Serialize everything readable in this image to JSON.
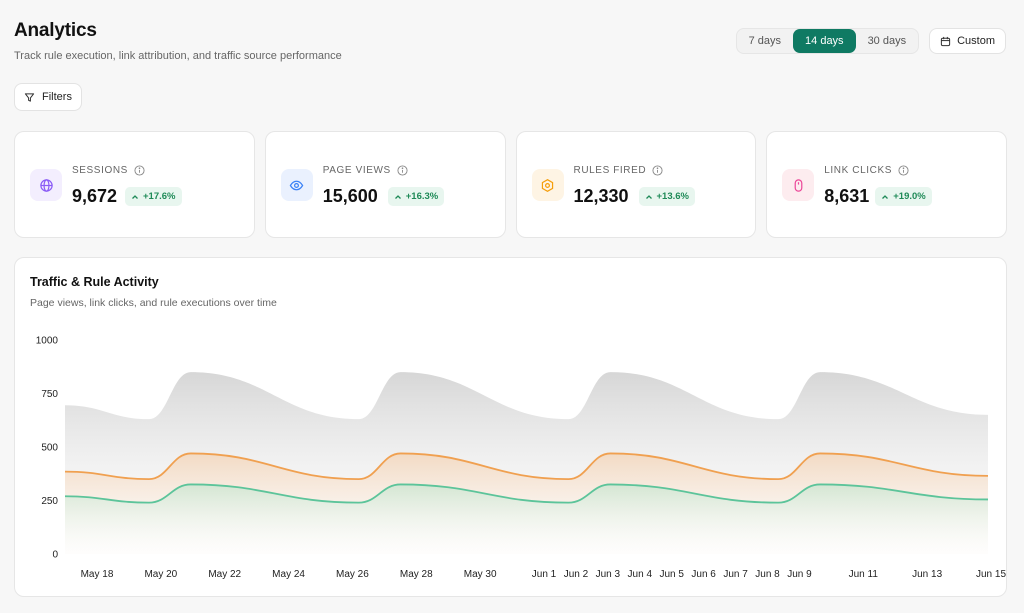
{
  "header": {
    "title": "Analytics",
    "subtitle": "Track rule execution, link attribution, and traffic source performance"
  },
  "range": {
    "options": [
      "7 days",
      "14 days",
      "30 days"
    ],
    "selected": "14 days",
    "custom_label": "Custom"
  },
  "filters_label": "Filters",
  "cards": [
    {
      "label": "SESSIONS",
      "value": "9,672",
      "change": "+17.6%",
      "icon": "globe-icon",
      "color": "#8b5cf6",
      "bg": "#f3eefe"
    },
    {
      "label": "PAGE VIEWS",
      "value": "15,600",
      "change": "+16.3%",
      "icon": "eye-icon",
      "color": "#3b82f6",
      "bg": "#eaf1fe"
    },
    {
      "label": "RULES FIRED",
      "value": "12,330",
      "change": "+13.6%",
      "icon": "gear-icon",
      "color": "#f59e0b",
      "bg": "#fef4e4"
    },
    {
      "label": "LINK CLICKS",
      "value": "8,631",
      "change": "+19.0%",
      "icon": "mouse-icon",
      "color": "#ec4899",
      "bg": "#fdecef"
    }
  ],
  "chart": {
    "title": "Traffic & Rule Activity",
    "subtitle": "Page views, link clicks, and rule executions over time"
  },
  "chart_data": {
    "type": "area",
    "ylim": [
      0,
      1000
    ],
    "yticks": [
      0,
      250,
      500,
      750,
      1000
    ],
    "x": [
      0,
      1.5,
      2,
      5,
      5.5,
      9,
      9.5,
      12,
      12.5,
      16,
      16.5,
      19,
      19.5,
      23
    ],
    "xtick_labels": [
      {
        "pos": 0.5,
        "label": "May 18"
      },
      {
        "pos": 2.5,
        "label": "May 20"
      },
      {
        "pos": 4.5,
        "label": "May 22"
      },
      {
        "pos": 6.5,
        "label": "May 24"
      },
      {
        "pos": 8.5,
        "label": "May 26"
      },
      {
        "pos": 10.5,
        "label": "May 28"
      },
      {
        "pos": 12.5,
        "label": "May 30"
      },
      {
        "pos": 14.5,
        "label": "Jun 1"
      },
      {
        "pos": 15.5,
        "label": "Jun 2"
      },
      {
        "pos": 16.5,
        "label": "Jun 3"
      },
      {
        "pos": 17.5,
        "label": "Jun 4"
      },
      {
        "pos": 18.5,
        "label": "Jun 5"
      },
      {
        "pos": 19.5,
        "label": "Jun 6"
      },
      {
        "pos": 20.5,
        "label": "Jun 7"
      },
      {
        "pos": 21.5,
        "label": "Jun 8"
      },
      {
        "pos": 22.5,
        "label": "Jun 9"
      },
      {
        "pos": 24.5,
        "label": "Jun 11"
      },
      {
        "pos": 26.5,
        "label": "Jun 13"
      },
      {
        "pos": 28.5,
        "label": "Jun 15"
      }
    ],
    "series": [
      {
        "color": "#bdbdbd",
        "values": [
          [
            0,
            695
          ],
          [
            2,
            630
          ],
          [
            3,
            850
          ],
          [
            7,
            630
          ],
          [
            8,
            850
          ],
          [
            12,
            630
          ],
          [
            13,
            850
          ],
          [
            17,
            630
          ],
          [
            18,
            850
          ],
          [
            22,
            650
          ]
        ]
      },
      {
        "color": "#f0a050",
        "values": [
          [
            0,
            385
          ],
          [
            2,
            350
          ],
          [
            3,
            470
          ],
          [
            7,
            350
          ],
          [
            8,
            470
          ],
          [
            12,
            350
          ],
          [
            13,
            470
          ],
          [
            17,
            350
          ],
          [
            18,
            470
          ],
          [
            22,
            365
          ]
        ]
      },
      {
        "color": "#5cc49a",
        "values": [
          [
            0,
            270
          ],
          [
            2,
            240
          ],
          [
            3,
            325
          ],
          [
            7,
            240
          ],
          [
            8,
            325
          ],
          [
            12,
            240
          ],
          [
            13,
            325
          ],
          [
            17,
            240
          ],
          [
            18,
            325
          ],
          [
            22,
            255
          ]
        ]
      }
    ]
  }
}
